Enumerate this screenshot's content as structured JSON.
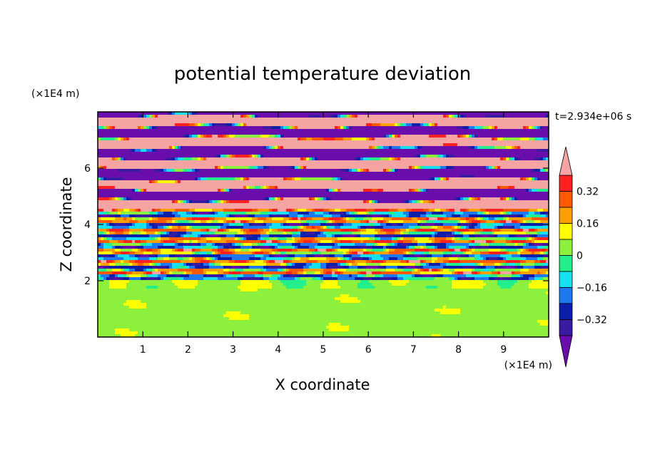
{
  "chart_data": {
    "type": "heatmap",
    "title": "potential temperature deviation",
    "xlabel": "X coordinate",
    "ylabel": "Z coordinate",
    "x_unit": "(×1E4 m)",
    "y_unit": "(×1E4 m)",
    "time_label": "t=2.934e+06 s",
    "xlim": [
      0,
      10
    ],
    "ylim": [
      0,
      8
    ],
    "x_ticks": [
      "1",
      "2",
      "3",
      "4",
      "5",
      "6",
      "7",
      "8",
      "9"
    ],
    "y_ticks": [
      "2",
      "4",
      "6"
    ],
    "colorbar": {
      "levels": [
        -0.4,
        -0.32,
        -0.24,
        -0.16,
        -0.08,
        0,
        0.08,
        0.16,
        0.24,
        0.32,
        0.4
      ],
      "tick_labels": [
        "0.32",
        "0.16",
        "0",
        "−0.16",
        "−0.32"
      ],
      "colors_low_to_high": [
        "#6a0dad",
        "#3a1aa0",
        "#0a1ea8",
        "#1e78f0",
        "#17e0f0",
        "#22ee8c",
        "#8cf03c",
        "#ffff00",
        "#ffa000",
        "#ff5a00",
        "#ff2020",
        "#f5a3a3"
      ],
      "extend": "both"
    },
    "field_description_regions": [
      {
        "z_range": [
          0,
          2.0
        ],
        "dominant": "0 to 0.08 (green / yellow-green)"
      },
      {
        "z_range": [
          2.0,
          4.5
        ],
        "dominant": "mixed, −0.4 to 0.4"
      },
      {
        "z_range": [
          4.5,
          8.0
        ],
        "dominant": "alternating bands of < −0.32 (purple) and > 0.4 (pink)"
      }
    ]
  }
}
